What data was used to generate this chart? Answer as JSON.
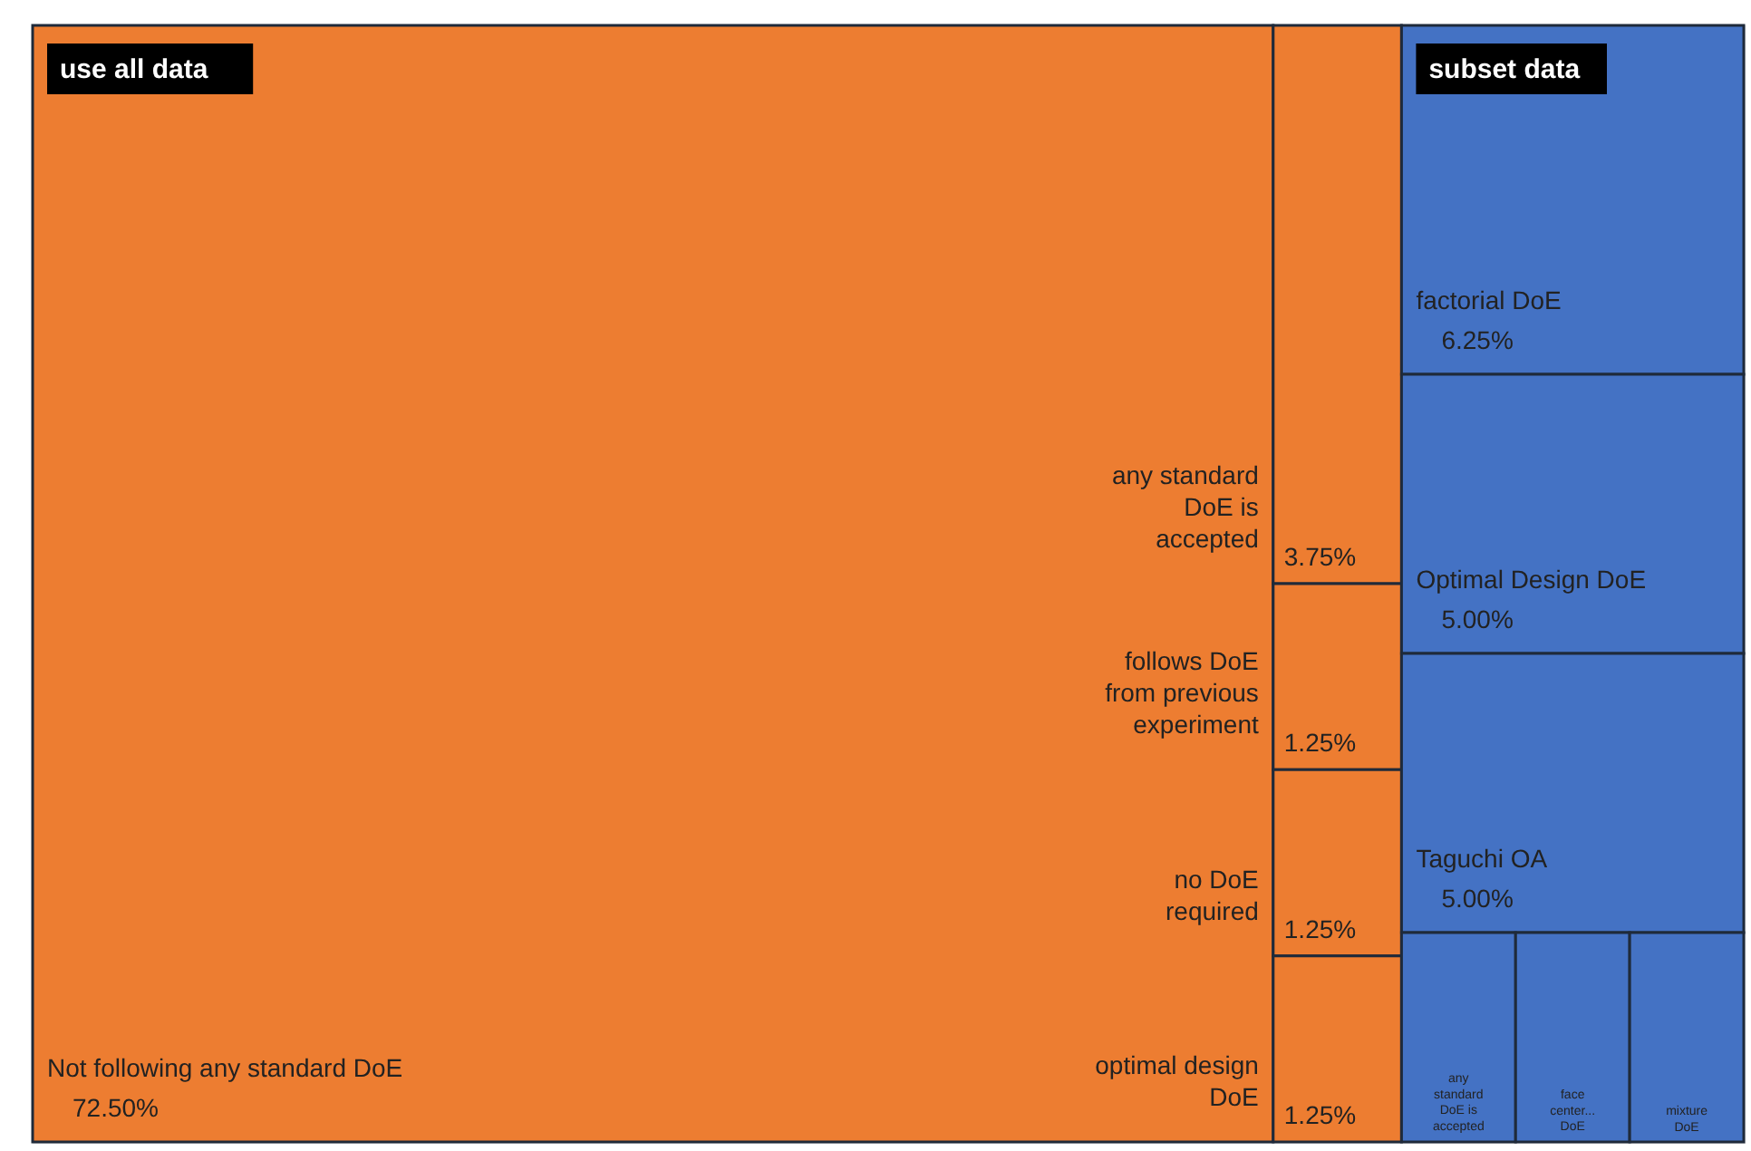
{
  "chart_data": {
    "type": "other",
    "categories": [
      "Not following any standard DoE",
      "any standard DoE is accepted",
      "follows DoE from previous experiment",
      "no DoE required",
      "optimal design DoE",
      "factorial DoE",
      "Optimal Design DoE",
      "Taguchi OA",
      "any standard DoE is accepted",
      "face center... DoE",
      "mixture DoE"
    ],
    "values": [
      72.5,
      3.75,
      1.25,
      1.25,
      1.25,
      6.25,
      5.0,
      5.0,
      null,
      null,
      null
    ],
    "value_labels": [
      "72.50%",
      "3.75%",
      "1.25%",
      "1.25%",
      "1.25%",
      "6.25%",
      "5.00%",
      "5.00%",
      null,
      null,
      null
    ],
    "colors": [
      "#ed7d31",
      "#ed7d31",
      "#ed7d31",
      "#ed7d31",
      "#ed7d31",
      "#4472c4",
      "#4472c4",
      "#4472c4",
      "#4472c4",
      "#4472c4",
      "#4472c4"
    ],
    "annotations": [
      "use all data",
      "subset data"
    ]
  }
}
